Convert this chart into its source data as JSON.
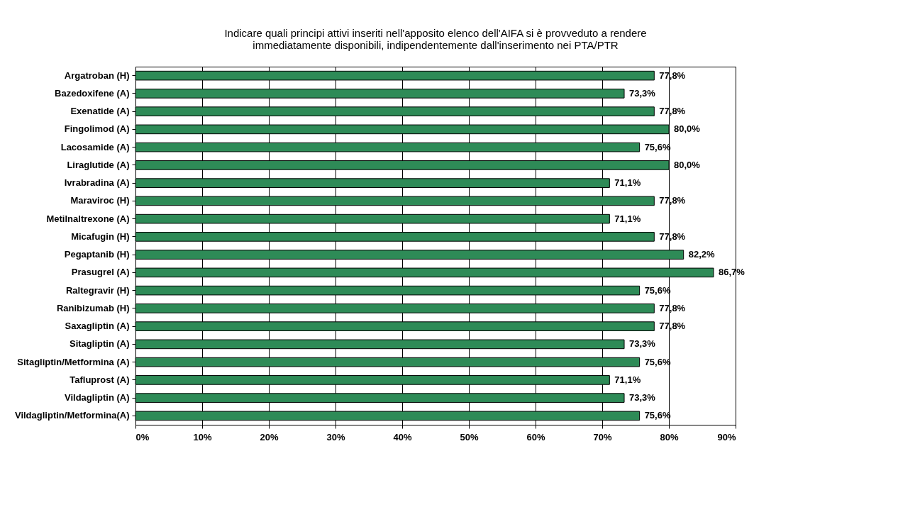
{
  "chart_data": {
    "type": "bar",
    "orientation": "horizontal",
    "title": [
      "Indicare quali principi attivi inseriti nell'apposito elenco dell'AIFA si è provveduto a rendere",
      "immediatamente disponibili, indipendentemente dall'inserimento nei PTA/PTR"
    ],
    "categories": [
      "Argatroban (H)",
      "Bazedoxifene (A)",
      "Exenatide (A)",
      "Fingolimod (A)",
      "Lacosamide (A)",
      "Liraglutide (A)",
      "Ivrabradina (A)",
      "Maraviroc (H)",
      "Metilnaltrexone (A)",
      "Micafugin (H)",
      "Pegaptanib (H)",
      "Prasugrel (A)",
      "Raltegravir (H)",
      "Ranibizumab (H)",
      "Saxagliptin (A)",
      "Sitagliptin (A)",
      "Sitagliptin/Metformina (A)",
      "Tafluprost (A)",
      "Vildagliptin (A)",
      "Vildagliptin/Metformina(A)"
    ],
    "values": [
      77.8,
      73.3,
      77.8,
      80.0,
      75.6,
      80.0,
      71.1,
      77.8,
      71.1,
      77.8,
      82.2,
      86.7,
      75.6,
      77.8,
      77.8,
      73.3,
      75.6,
      71.1,
      73.3,
      75.6
    ],
    "value_labels": [
      "77,8%",
      "73,3%",
      "77,8%",
      "80,0%",
      "75,6%",
      "80,0%",
      "71,1%",
      "77,8%",
      "71,1%",
      "77,8%",
      "82,2%",
      "86,7%",
      "75,6%",
      "77,8%",
      "77,8%",
      "73,3%",
      "75,6%",
      "71,1%",
      "73,3%",
      "75,6%"
    ],
    "color": "#2e8b57",
    "xlim": [
      0,
      90
    ],
    "xticks": [
      {
        "value": 0,
        "label": "0%"
      },
      {
        "value": 10,
        "label": "10%"
      },
      {
        "value": 20,
        "label": "20%"
      },
      {
        "value": 30,
        "label": "30%"
      },
      {
        "value": 40,
        "label": "40%"
      },
      {
        "value": 50,
        "label": "50%"
      },
      {
        "value": 60,
        "label": "60%"
      },
      {
        "value": 70,
        "label": "70%"
      },
      {
        "value": 80,
        "label": "80%"
      },
      {
        "value": 90,
        "label": "90%"
      }
    ],
    "grid": "x"
  }
}
